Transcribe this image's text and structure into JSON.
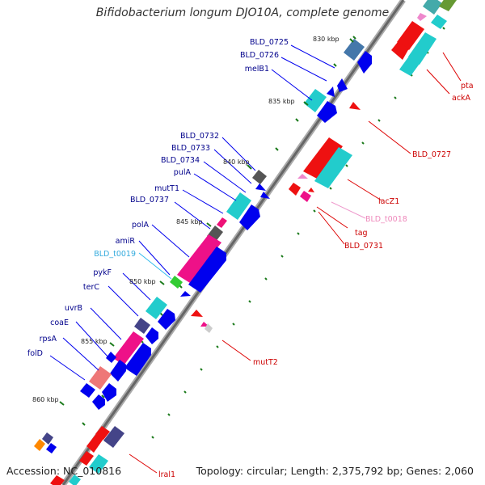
{
  "title": "Bifidobacterium longum DJO10A, complete genome",
  "accession": "Accession: NC_010816",
  "summary": "Topology: circular; Length: 2,375,792 bp; Genes: 2,060",
  "ticks": [
    "830 kbp",
    "835 kbp",
    "840 kbp",
    "845 kbp",
    "850 kbp",
    "855 kbp",
    "860 kbp"
  ],
  "labels_left": [
    "BLD_0725",
    "BLD_0726",
    "melB1",
    "BLD_0732",
    "BLD_0733",
    "BLD_0734",
    "pulA",
    "mutT1",
    "BLD_0737",
    "polA",
    "amiR",
    "BLD_t0019",
    "pykF",
    "terC",
    "uvrB",
    "coaE",
    "rpsA",
    "folD"
  ],
  "labels_right": [
    "pta",
    "ackA",
    "BLD_0727",
    "lacZ1",
    "BLD_t0018",
    "tag",
    "BLD_0731",
    "mutT2",
    "lral1"
  ],
  "colors": {
    "forward_label": "#00008b",
    "reverse_label": "#cc0000",
    "trna_forward": "#33aadd",
    "trna_reverse": "#ee88bb",
    "backbone": "#777777",
    "minor_tick": "#1a7a1a"
  }
}
